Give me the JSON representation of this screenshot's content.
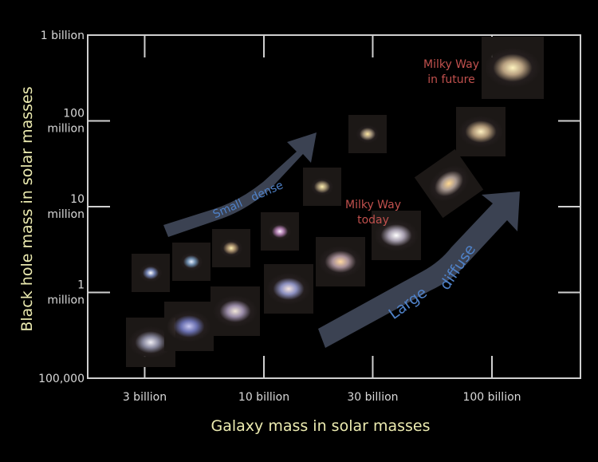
{
  "chart_data": {
    "type": "scatter",
    "xlabel": "Galaxy mass in solar masses",
    "ylabel": "Black hole mass in solar masses",
    "xscale": "log",
    "yscale": "log",
    "xlim": [
      2400000000.0,
      200000000000.0
    ],
    "ylim": [
      100000.0,
      1000000000.0
    ],
    "x_ticks": [
      {
        "value": 3000000000.0,
        "label": "3 billion"
      },
      {
        "value": 10000000000.0,
        "label": "10 billion"
      },
      {
        "value": 30000000000.0,
        "label": "30 billion"
      },
      {
        "value": 100000000000.0,
        "label": "100 billion"
      }
    ],
    "y_ticks": [
      {
        "value": 100000.0,
        "lines": [
          "100,000"
        ]
      },
      {
        "value": 1000000.0,
        "lines": [
          "1",
          "million"
        ]
      },
      {
        "value": 10000000.0,
        "lines": [
          "10",
          "million"
        ]
      },
      {
        "value": 100000000.0,
        "lines": [
          "100",
          "million"
        ]
      },
      {
        "value": 1000000000.0,
        "lines": [
          "1 billion"
        ]
      }
    ],
    "points": [
      {
        "galaxy_mass": 3200000000.0,
        "bh_mass": 260000.0,
        "group": "large-diffuse",
        "core": "#f0eef4",
        "halo": "#8a8aa0"
      },
      {
        "galaxy_mass": 4700000000.0,
        "bh_mass": 400000.0,
        "group": "large-diffuse",
        "core": "#c8c8f0",
        "halo": "#6a70b0"
      },
      {
        "galaxy_mass": 7500000000.0,
        "bh_mass": 600000.0,
        "group": "large-diffuse",
        "core": "#f0e6d8",
        "halo": "#9a8ca8"
      },
      {
        "galaxy_mass": 12800000000.0,
        "bh_mass": 1100000.0,
        "group": "large-diffuse",
        "core": "#f4e4e0",
        "halo": "#8c90c0"
      },
      {
        "galaxy_mass": 21700000000.0,
        "bh_mass": 2300000.0,
        "group": "large-diffuse",
        "core": "#ffd8a0",
        "halo": "#a89098"
      },
      {
        "galaxy_mass": 38000000000.0,
        "bh_mass": 4600000.0,
        "group": "large-diffuse",
        "core": "#ffffff",
        "halo": "#a8a0b0",
        "label": "Milky Way today"
      },
      {
        "galaxy_mass": 65000000000.0,
        "bh_mass": 18600000.0,
        "group": "large-diffuse",
        "core": "#ffd890",
        "halo": "#a89890"
      },
      {
        "galaxy_mass": 3200000000.0,
        "bh_mass": 1700000.0,
        "group": "small-dense",
        "core": "#ffffff",
        "halo": "#7080b0"
      },
      {
        "galaxy_mass": 4800000000.0,
        "bh_mass": 2300000.0,
        "group": "small-dense",
        "core": "#e8f0ff",
        "halo": "#6a88a8"
      },
      {
        "galaxy_mass": 7200000000.0,
        "bh_mass": 3300000.0,
        "group": "small-dense",
        "core": "#fff0b0",
        "halo": "#a08868"
      },
      {
        "galaxy_mass": 11700000000.0,
        "bh_mass": 5100000.0,
        "group": "small-dense",
        "core": "#fff0ff",
        "halo": "#a878a8"
      },
      {
        "galaxy_mass": 18000000000.0,
        "bh_mass": 17000000.0,
        "group": "small-dense",
        "core": "#fff0b0",
        "halo": "#a09070"
      },
      {
        "galaxy_mass": 28500000000.0,
        "bh_mass": 70000000.0,
        "group": "small-dense",
        "core": "#ffe8a0",
        "halo": "#a09078"
      },
      {
        "galaxy_mass": 89000000000.0,
        "bh_mass": 75000000.0,
        "group": "elliptical",
        "core": "#fff0c0",
        "halo": "#b09878"
      },
      {
        "galaxy_mass": 123000000000.0,
        "bh_mass": 415000000.0,
        "group": "elliptical",
        "core": "#fff4c0",
        "halo": "#b8a080",
        "label": "Milky Way in future"
      }
    ],
    "annotations": {
      "mw_today": [
        "Milky Way",
        "today"
      ],
      "mw_future": [
        "Milky Way",
        "in future"
      ],
      "small_dense": [
        "Small",
        "dense"
      ],
      "large_diffuse": [
        "Large",
        "diffuse"
      ]
    },
    "colors": {
      "axis": "#d0d0d0",
      "axis_title": "#ecebb0",
      "annotation": "#c0504d",
      "arrow": "#3b4252",
      "arrow_text": "#4f81c7"
    }
  }
}
